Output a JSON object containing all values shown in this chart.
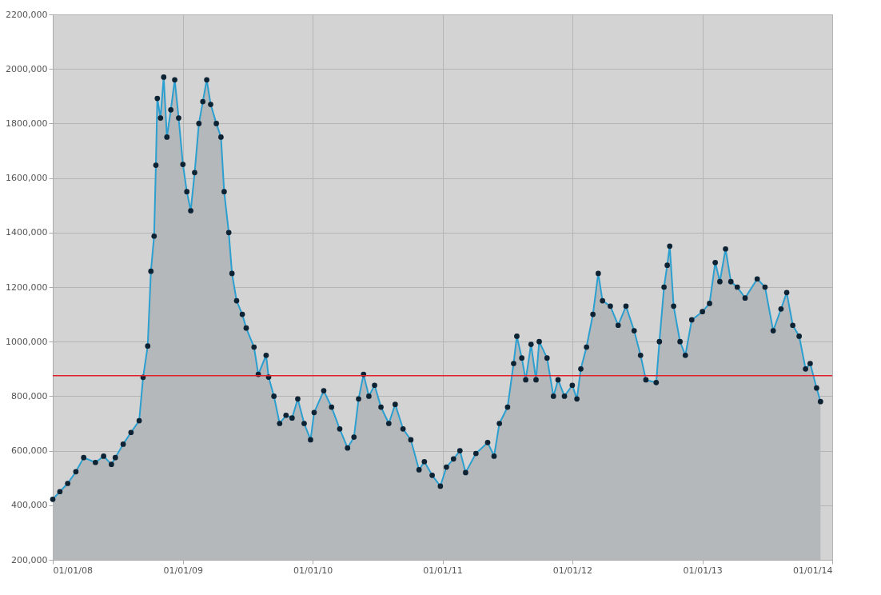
{
  "chart_data": {
    "type": "area",
    "xlim": [
      "2008-01-01",
      "2014-01-01"
    ],
    "xticks": [
      {
        "value": "2008-01-01",
        "label": "01/01/08"
      },
      {
        "value": "2009-01-01",
        "label": "01/01/09"
      },
      {
        "value": "2010-01-01",
        "label": "01/01/10"
      },
      {
        "value": "2011-01-01",
        "label": "01/01/11"
      },
      {
        "value": "2012-01-01",
        "label": "01/01/12"
      },
      {
        "value": "2013-01-01",
        "label": "01/01/13"
      },
      {
        "value": "2014-01-01",
        "label": "01/01/14"
      }
    ],
    "ylim": [
      200000,
      2200000
    ],
    "yticks": [
      {
        "value": 200000,
        "label": "200,000"
      },
      {
        "value": 400000,
        "label": "400,000"
      },
      {
        "value": 600000,
        "label": "600,000"
      },
      {
        "value": 800000,
        "label": "800,000"
      },
      {
        "value": 1000000,
        "label": "1000,000"
      },
      {
        "value": 1200000,
        "label": "1200,000"
      },
      {
        "value": 1400000,
        "label": "1400,000"
      },
      {
        "value": 1600000,
        "label": "1600,000"
      },
      {
        "value": 1800000,
        "label": "1800,000"
      },
      {
        "value": 2000000,
        "label": "2000,000"
      },
      {
        "value": 2200000,
        "label": "2200,000"
      }
    ],
    "grid": true,
    "legend": false,
    "marker": "circle",
    "line_style": "solid",
    "ref_lines": [
      {
        "axis": "y",
        "value": 875000,
        "color": "#e0202a"
      }
    ],
    "x": [
      "2008-01-01",
      "2008-01-21",
      "2008-02-12",
      "2008-03-06",
      "2008-03-28",
      "2008-04-30",
      "2008-05-23",
      "2008-06-14",
      "2008-06-25",
      "2008-07-17",
      "2008-08-08",
      "2008-08-31",
      "2008-09-11",
      "2008-09-24",
      "2008-10-03",
      "2008-10-12",
      "2008-10-17",
      "2008-10-21",
      "2008-10-30",
      "2008-11-08",
      "2008-11-17",
      "2008-11-28",
      "2008-12-09",
      "2008-12-20",
      "2009-01-01",
      "2009-01-12",
      "2009-01-23",
      "2009-02-03",
      "2009-02-15",
      "2009-02-26",
      "2009-03-09",
      "2009-03-20",
      "2009-04-05",
      "2009-04-18",
      "2009-04-27",
      "2009-05-10",
      "2009-05-19",
      "2009-06-01",
      "2009-06-17",
      "2009-06-28",
      "2009-07-20",
      "2009-08-01",
      "2009-08-23",
      "2009-08-30",
      "2009-09-14",
      "2009-09-30",
      "2009-10-18",
      "2009-11-04",
      "2009-11-20",
      "2009-12-08",
      "2009-12-26",
      "2010-01-05",
      "2010-02-01",
      "2010-02-23",
      "2010-03-18",
      "2010-04-09",
      "2010-04-27",
      "2010-05-10",
      "2010-05-24",
      "2010-06-08",
      "2010-06-24",
      "2010-07-12",
      "2010-08-03",
      "2010-08-21",
      "2010-09-12",
      "2010-10-04",
      "2010-10-27",
      "2010-11-11",
      "2010-12-03",
      "2010-12-26",
      "2011-01-12",
      "2011-02-01",
      "2011-02-19",
      "2011-03-07",
      "2011-04-05",
      "2011-05-08",
      "2011-05-26",
      "2011-06-10",
      "2011-07-03",
      "2011-07-20",
      "2011-07-29",
      "2011-08-12",
      "2011-08-23",
      "2011-09-07",
      "2011-09-21",
      "2011-09-30",
      "2011-10-22",
      "2011-11-09",
      "2011-11-22",
      "2011-12-10",
      "2012-01-01",
      "2012-01-14",
      "2012-01-25",
      "2012-02-10",
      "2012-02-28",
      "2012-03-14",
      "2012-03-26",
      "2012-04-17",
      "2012-05-09",
      "2012-05-31",
      "2012-06-23",
      "2012-07-11",
      "2012-07-26",
      "2012-08-24",
      "2012-09-02",
      "2012-09-15",
      "2012-09-24",
      "2012-10-01",
      "2012-10-12",
      "2012-10-30",
      "2012-11-14",
      "2012-12-02",
      "2013-01-01",
      "2013-01-21",
      "2013-02-06",
      "2013-02-19",
      "2013-03-07",
      "2013-03-22",
      "2013-04-09",
      "2013-05-01",
      "2013-06-04",
      "2013-06-26",
      "2013-07-19",
      "2013-08-10",
      "2013-08-26",
      "2013-09-12",
      "2013-09-30",
      "2013-10-18",
      "2013-10-31",
      "2013-11-18",
      "2013-11-29"
    ],
    "series": [
      {
        "color": "#0d2233",
        "values": [
          422000,
          450000,
          480000,
          523000,
          575000,
          557000,
          580000,
          550000,
          575000,
          624000,
          667000,
          710000,
          869000,
          984000,
          1258000,
          1387000,
          1647000,
          1892000,
          1820000,
          1970000,
          1750000,
          1850000,
          1960000,
          1820000,
          1650000,
          1550000,
          1480000,
          1620000,
          1800000,
          1880000,
          1960000,
          1870000,
          1800000,
          1750000,
          1550000,
          1400000,
          1250000,
          1150000,
          1100000,
          1050000,
          980000,
          880000,
          950000,
          870000,
          800000,
          700000,
          730000,
          720000,
          790000,
          700000,
          640000,
          740000,
          820000,
          760000,
          680000,
          610000,
          650000,
          790000,
          880000,
          800000,
          840000,
          760000,
          700000,
          770000,
          680000,
          640000,
          530000,
          560000,
          510000,
          470000,
          540000,
          570000,
          600000,
          520000,
          590000,
          630000,
          580000,
          700000,
          760000,
          920000,
          1020000,
          940000,
          860000,
          990000,
          860000,
          1000000,
          940000,
          800000,
          860000,
          800000,
          840000,
          790000,
          900000,
          980000,
          1100000,
          1250000,
          1150000,
          1130000,
          1060000,
          1130000,
          1040000,
          950000,
          860000,
          850000,
          1000000,
          1200000,
          1280000,
          1350000,
          1130000,
          1000000,
          950000,
          1080000,
          1110000,
          1140000,
          1290000,
          1220000,
          1340000,
          1220000,
          1200000,
          1160000,
          1230000,
          1200000,
          1040000,
          1120000,
          1180000,
          1060000,
          1020000,
          900000,
          920000,
          830000,
          780000
        ]
      }
    ]
  }
}
